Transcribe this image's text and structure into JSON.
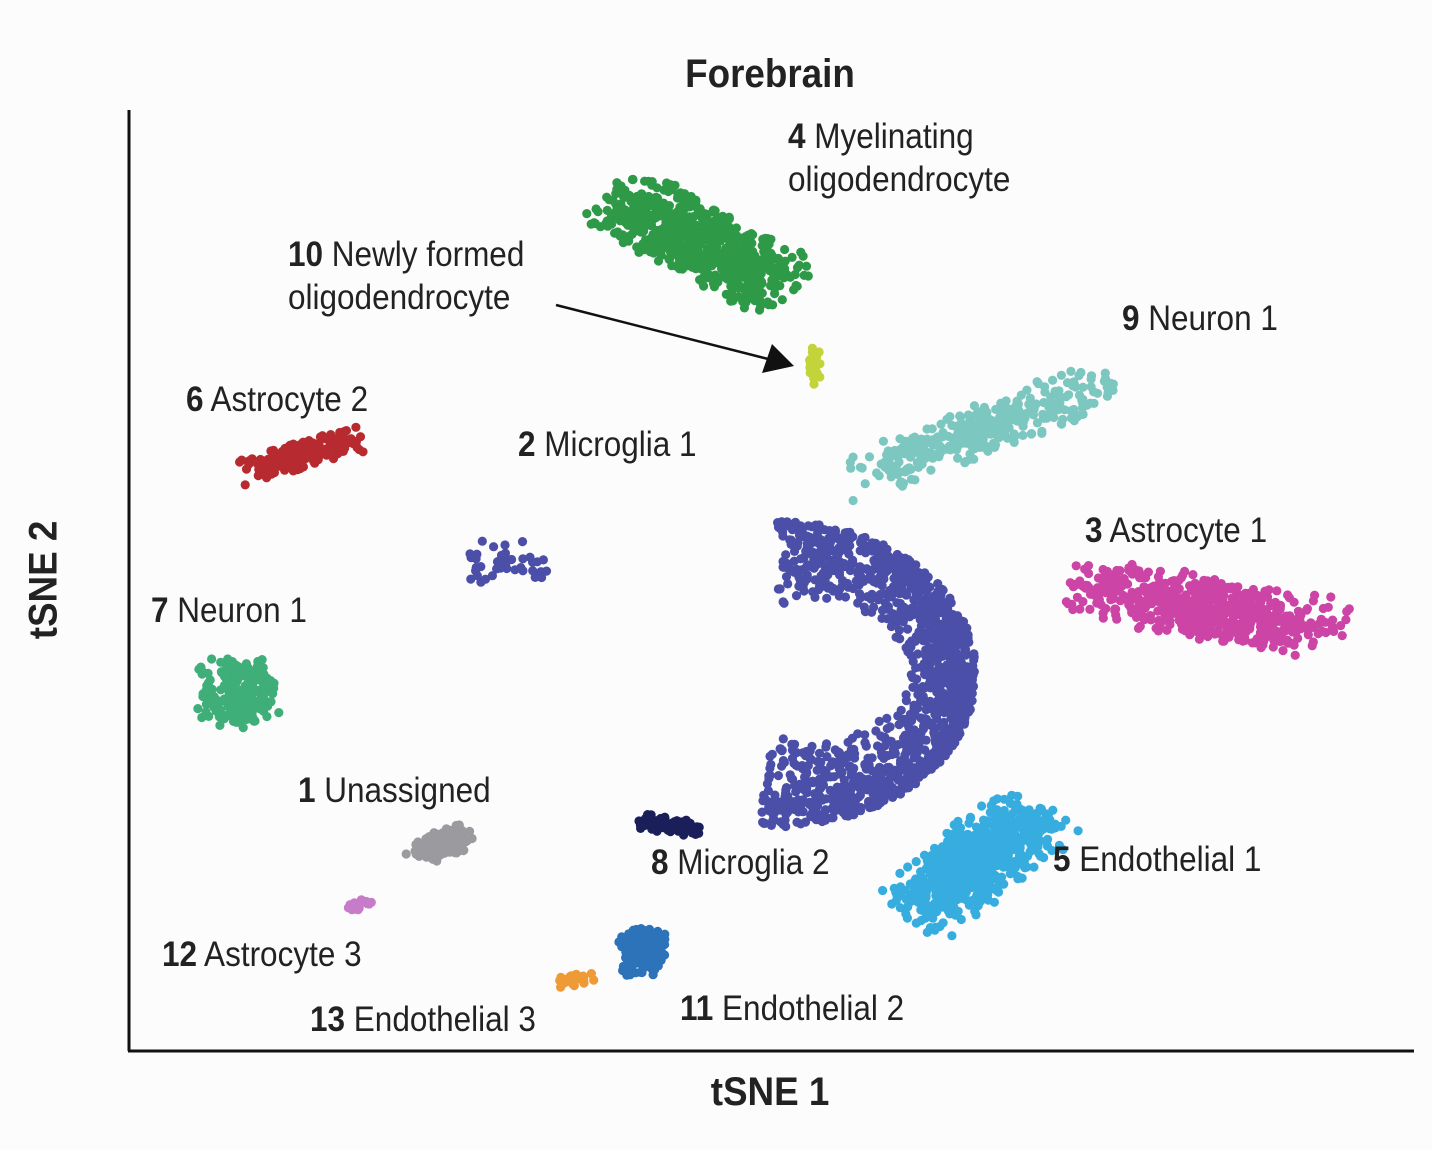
{
  "chart_data": {
    "type": "scatter",
    "title": "Forebrain",
    "xlabel": "tSNE 1",
    "ylabel": "tSNE 2",
    "xlim": [
      0,
      100
    ],
    "ylim": [
      0,
      100
    ],
    "grid": false,
    "legend": "none (cluster labels placed next to each cluster)",
    "clusters": [
      {
        "id": "1",
        "name": "Unassigned",
        "color": "#9a9a9f",
        "center": [
          24.5,
          22.0
        ],
        "spread": [
          2.6,
          1.6
        ],
        "tilt": 28,
        "count": 150
      },
      {
        "id": "2",
        "name": "Microglia 1",
        "color": "#4b4fa8",
        "shape": "crescent",
        "count": 1300
      },
      {
        "id": "3",
        "name": "Astrocyte 1",
        "color": "#cc44a5",
        "center": [
          84.0,
          47.0
        ],
        "spread": [
          11.0,
          3.4
        ],
        "tilt": -14,
        "count": 650
      },
      {
        "id": "4",
        "name": "Myelinating oligodendrocyte",
        "color": "#2e9a48",
        "center": [
          44.5,
          86.0
        ],
        "spread": [
          9.0,
          3.8
        ],
        "tilt": -36,
        "count": 700
      },
      {
        "id": "5",
        "name": "Endothelial 1",
        "color": "#36acdf",
        "center": [
          66.0,
          20.0
        ],
        "spread": [
          4.0,
          8.2
        ],
        "tilt": -40,
        "count": 650
      },
      {
        "id": "6",
        "name": "Astrocyte 2",
        "color": "#b72b30",
        "center": [
          13.5,
          63.3
        ],
        "spread": [
          5.4,
          1.4
        ],
        "tilt": 22,
        "count": 200
      },
      {
        "id": "7",
        "name": "Neuron 1",
        "color": "#3fae78",
        "center": [
          8.5,
          38.0
        ],
        "spread": [
          3.2,
          3.6
        ],
        "tilt": 0,
        "count": 220
      },
      {
        "id": "8",
        "name": "Microglia 2",
        "color": "#1a1f5a",
        "center": [
          42.0,
          24.0
        ],
        "spread": [
          2.6,
          0.9
        ],
        "tilt": -8,
        "count": 70
      },
      {
        "id": "9",
        "name": "Neuron 1",
        "color": "#7cc7c0",
        "center": [
          66.5,
          66.0
        ],
        "spread": [
          11.5,
          2.6
        ],
        "tilt": 28,
        "count": 350
      },
      {
        "id": "10",
        "name": "Newly formed oligodendrocyte",
        "color": "#c2d43a",
        "center": [
          53.4,
          72.6
        ],
        "spread": [
          0.45,
          2.2
        ],
        "tilt": 0,
        "count": 30
      },
      {
        "id": "11",
        "name": "Endothelial 2",
        "color": "#2c73ba",
        "center": [
          40.0,
          10.5
        ],
        "spread": [
          1.9,
          2.6
        ],
        "tilt": 0,
        "count": 160
      },
      {
        "id": "12",
        "name": "Astrocyte 3",
        "color": "#c77cc9",
        "center": [
          17.8,
          15.4
        ],
        "spread": [
          1.2,
          0.5
        ],
        "tilt": 18,
        "count": 20
      },
      {
        "id": "13",
        "name": "Endothelial 3",
        "color": "#ee9a36",
        "center": [
          34.7,
          7.5
        ],
        "spread": [
          1.6,
          0.7
        ],
        "tilt": 18,
        "count": 30
      }
    ]
  },
  "labels": [
    {
      "num": "4",
      "line1": " Myelinating",
      "line2": "oligodendrocyte"
    },
    {
      "num": "10",
      "line1": " Newly formed",
      "line2": "oligodendrocyte"
    },
    {
      "num": "9",
      "line1": " Neuron 1",
      "line2": ""
    },
    {
      "num": "6",
      "line1": " Astrocyte 2",
      "line2": ""
    },
    {
      "num": "2",
      "line1": " Microglia 1",
      "line2": ""
    },
    {
      "num": "3",
      "line1": " Astrocyte 1",
      "line2": ""
    },
    {
      "num": "7",
      "line1": " Neuron 1",
      "line2": ""
    },
    {
      "num": "1",
      "line1": " Unassigned",
      "line2": ""
    },
    {
      "num": "8",
      "line1": " Microglia 2",
      "line2": ""
    },
    {
      "num": "5",
      "line1": " Endothelial 1",
      "line2": ""
    },
    {
      "num": "12",
      "line1": " Astrocyte 3",
      "line2": ""
    },
    {
      "num": "13",
      "line1": " Endothelial 3",
      "line2": ""
    },
    {
      "num": "11",
      "line1": " Endothelial 2",
      "line2": ""
    }
  ]
}
